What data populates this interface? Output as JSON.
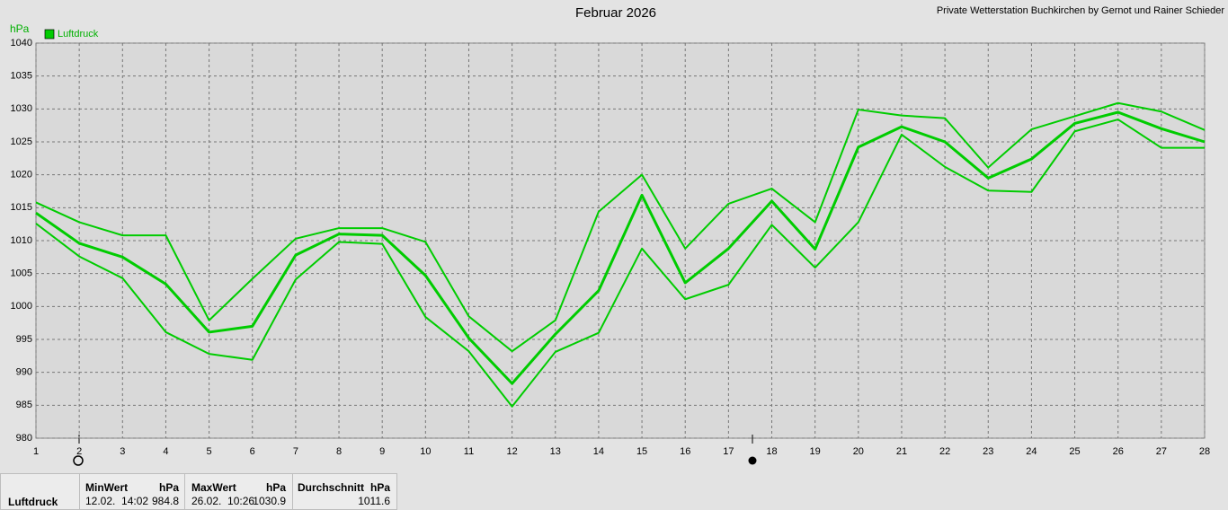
{
  "chart_data": {
    "type": "line",
    "title": "Februar 2026",
    "subtitle": "Private Wetterstation Buchkirchen by Gernot und Rainer Schieder",
    "y_label": "hPa",
    "x": [
      1,
      2,
      3,
      4,
      5,
      6,
      7,
      8,
      9,
      10,
      11,
      12,
      13,
      14,
      15,
      16,
      17,
      18,
      19,
      20,
      21,
      22,
      23,
      24,
      25,
      26,
      27,
      28
    ],
    "xlim": [
      1,
      28
    ],
    "xticks": [
      1,
      2,
      3,
      4,
      5,
      6,
      7,
      8,
      9,
      10,
      11,
      12,
      13,
      14,
      15,
      16,
      17,
      18,
      19,
      20,
      21,
      22,
      23,
      24,
      25,
      26,
      27,
      28
    ],
    "ylim": [
      980,
      1040
    ],
    "yticks": [
      980,
      985,
      990,
      995,
      1000,
      1005,
      1010,
      1015,
      1020,
      1025,
      1030,
      1035,
      1040
    ],
    "grid": true,
    "legend": "top-left",
    "series": [
      {
        "name": "Luftdruck",
        "color": "#00cc00",
        "values": [
          1014.2,
          1009.6,
          1007.5,
          1003.4,
          996.1,
          997.0,
          1007.8,
          1011.0,
          1010.8,
          1004.7,
          995.2,
          988.3,
          995.8,
          1002.4,
          1016.9,
          1003.6,
          1008.8,
          1016.0,
          1008.7,
          1024.2,
          1027.3,
          1025.0,
          1019.5,
          1022.4,
          1027.8,
          1029.5,
          1027.0,
          1025.0
        ]
      },
      {
        "color": "#00cc00",
        "values": [
          1015.8,
          1012.8,
          1010.8,
          1010.8,
          997.9,
          1004.2,
          1010.3,
          1011.9,
          1011.9,
          1009.8,
          998.5,
          993.2,
          997.9,
          1014.4,
          1020.0,
          1008.8,
          1015.6,
          1017.9,
          1012.8,
          1029.9,
          1029.0,
          1028.6,
          1021.1,
          1026.9,
          1028.9,
          1030.9,
          1029.6,
          1026.8
        ]
      },
      {
        "color": "#00cc00",
        "values": [
          1012.6,
          1007.6,
          1004.3,
          996.1,
          992.8,
          991.9,
          1004.1,
          1009.8,
          1009.5,
          998.4,
          993.2,
          984.8,
          993.1,
          996.0,
          1008.8,
          1001.1,
          1003.3,
          1012.4,
          1005.9,
          1012.8,
          1026.1,
          1021.2,
          1017.6,
          1017.4,
          1026.6,
          1028.4,
          1024.1,
          1024.1
        ]
      }
    ]
  },
  "summary": {
    "row_label": "Luftdruck",
    "min": {
      "header": "MinWert",
      "unit": "hPa",
      "time": "12.02.  14:02",
      "value": 984.8
    },
    "max": {
      "header": "MaxWert",
      "unit": "hPa",
      "time": "26.02.  10:26",
      "value": 1030.9
    },
    "avg": {
      "header": "Durchschnitt",
      "unit": "hPa",
      "value": 1011.6
    }
  }
}
